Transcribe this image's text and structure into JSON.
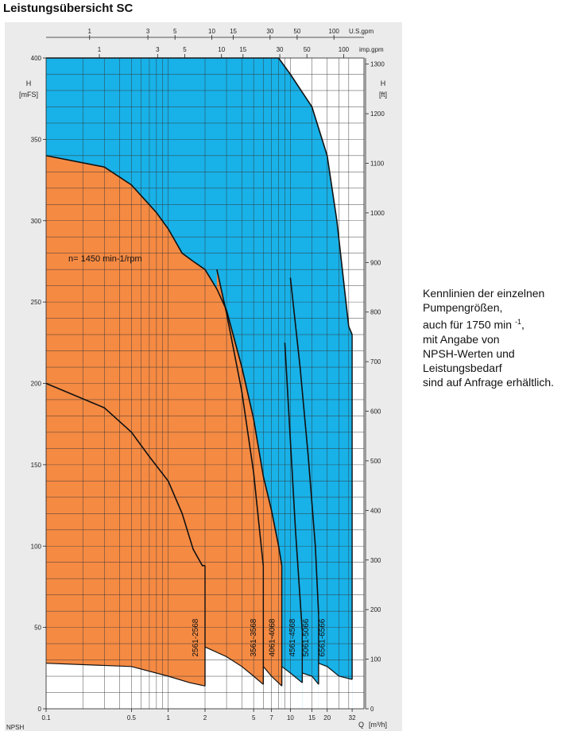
{
  "page": {
    "title": "Leistungsübersicht SC",
    "note_lines": [
      "Kennlinien der einzelnen",
      "Pumpengrößen,",
      "auch für 1750 min",
      "mit Angabe von",
      "NPSH-Werten und",
      "Leistungsbedarf",
      "sind auf Anfrage erhältlich."
    ],
    "note_superscript": "-1",
    "note_tail": ",",
    "footer_partial": "NPSH"
  },
  "chart_data": {
    "type": "area",
    "title": "",
    "rpm_label": "n= 1450 min-1/rpm",
    "x_scale": "log",
    "xlim": [
      0.1,
      40
    ],
    "ylim": [
      0,
      400
    ],
    "grid": true,
    "colors": {
      "standard": "#f58a43",
      "high_head": "#18b1e8",
      "curve": "#111111",
      "panel": "#ebebeb",
      "grid": "#333333"
    },
    "axes": {
      "left": {
        "label": "H",
        "unit": "mFS",
        "ticks": [
          0,
          50,
          100,
          150,
          200,
          250,
          300,
          350,
          400
        ]
      },
      "right": {
        "label": "H",
        "unit": "ft",
        "ticks": [
          0,
          100,
          200,
          300,
          400,
          500,
          600,
          700,
          800,
          900,
          1000,
          1100,
          1200,
          1300
        ]
      },
      "bottom": {
        "label": "Q",
        "unit": "m³/h",
        "ticks": [
          "0.1",
          "0.5",
          "1",
          "2",
          "5",
          "7",
          "10",
          "15",
          "20",
          "32"
        ],
        "values": [
          0.1,
          0.5,
          1,
          2,
          5,
          7,
          10,
          15,
          20,
          32
        ]
      },
      "top_us": {
        "unit": "U.S.gpm",
        "ticks": [
          "1",
          "3",
          "5",
          "10",
          "15",
          "30",
          "50",
          "100"
        ],
        "values": [
          1,
          3,
          5,
          10,
          15,
          30,
          50,
          100
        ]
      },
      "top_imp": {
        "unit": "imp.gpm",
        "ticks": [
          "1",
          "3",
          "5",
          "10",
          "15",
          "30",
          "50",
          "100"
        ],
        "values": [
          1,
          3,
          5,
          10,
          15,
          30,
          50,
          100
        ]
      }
    },
    "fields": [
      {
        "model": "2561-2568",
        "color": "standard",
        "q_max": 2.0,
        "top": [
          [
            0.1,
            200
          ],
          [
            0.3,
            185
          ],
          [
            0.5,
            170
          ],
          [
            0.7,
            155
          ],
          [
            1.0,
            140
          ],
          [
            1.3,
            120
          ],
          [
            1.6,
            98
          ],
          [
            1.9,
            88
          ],
          [
            2.0,
            88
          ]
        ],
        "bottom": [
          [
            0.1,
            28
          ],
          [
            0.5,
            26
          ],
          [
            1.0,
            20
          ],
          [
            1.5,
            16
          ],
          [
            2.0,
            14
          ]
        ]
      },
      {
        "model": "3561-3568",
        "color": "standard",
        "q_max": 6.0,
        "top": [
          [
            2.5,
            270
          ],
          [
            3.0,
            243
          ],
          [
            4.0,
            195
          ],
          [
            5.0,
            145
          ],
          [
            5.5,
            115
          ],
          [
            6.0,
            88
          ]
        ],
        "bottom": [
          [
            2.0,
            38
          ],
          [
            3.0,
            32
          ],
          [
            4.0,
            26
          ],
          [
            5.0,
            20
          ],
          [
            6.0,
            15
          ]
        ]
      },
      {
        "model": "4061-4068",
        "color": "standard",
        "q_max": 8.5,
        "top": [
          [
            0.1,
            340
          ],
          [
            0.3,
            333
          ],
          [
            0.5,
            322
          ],
          [
            0.8,
            305
          ],
          [
            1.0,
            295
          ],
          [
            1.3,
            280
          ],
          [
            1.6,
            275
          ],
          [
            2.0,
            270
          ],
          [
            2.5,
            258
          ],
          [
            3.0,
            245
          ],
          [
            4.0,
            210
          ],
          [
            5.0,
            178
          ],
          [
            6.0,
            143
          ],
          [
            7.0,
            122
          ],
          [
            8.0,
            100
          ],
          [
            8.5,
            88
          ]
        ],
        "bottom": [
          [
            6.0,
            26
          ],
          [
            7.0,
            20
          ],
          [
            8.5,
            14
          ]
        ]
      },
      {
        "model": "4561-4568",
        "color": "high_head",
        "q_max": 12.5,
        "top": [
          [
            9.0,
            225
          ],
          [
            10.0,
            165
          ],
          [
            11.0,
            110
          ],
          [
            12.5,
            48
          ]
        ],
        "bottom": [
          [
            8.5,
            26
          ],
          [
            10.0,
            22
          ],
          [
            12.5,
            16
          ]
        ]
      },
      {
        "model": "5061-5066",
        "color": "high_head",
        "q_max": 17.0,
        "top": [
          [
            10.0,
            265
          ],
          [
            12.0,
            210
          ],
          [
            14.0,
            155
          ],
          [
            16.0,
            100
          ],
          [
            17.0,
            58
          ]
        ],
        "bottom": [
          [
            12.5,
            22
          ],
          [
            15.0,
            20
          ],
          [
            17.0,
            15
          ]
        ]
      },
      {
        "model": "6561-6566",
        "color": "high_head",
        "q_max": 32.0,
        "top": [
          [
            0.1,
            400
          ],
          [
            8.0,
            400
          ],
          [
            10.0,
            390
          ],
          [
            15.0,
            370
          ],
          [
            20.0,
            340
          ],
          [
            24.0,
            300
          ],
          [
            28.0,
            255
          ],
          [
            30.0,
            235
          ],
          [
            32.0,
            230
          ]
        ],
        "bottom": [
          [
            17.0,
            28
          ],
          [
            20.0,
            26
          ],
          [
            25.0,
            20
          ],
          [
            32.0,
            18
          ]
        ]
      }
    ],
    "model_labels": [
      "2561-2568",
      "3561-3568",
      "4061-4068",
      "4561-4568",
      "5061-5066",
      "6561-6566"
    ]
  }
}
